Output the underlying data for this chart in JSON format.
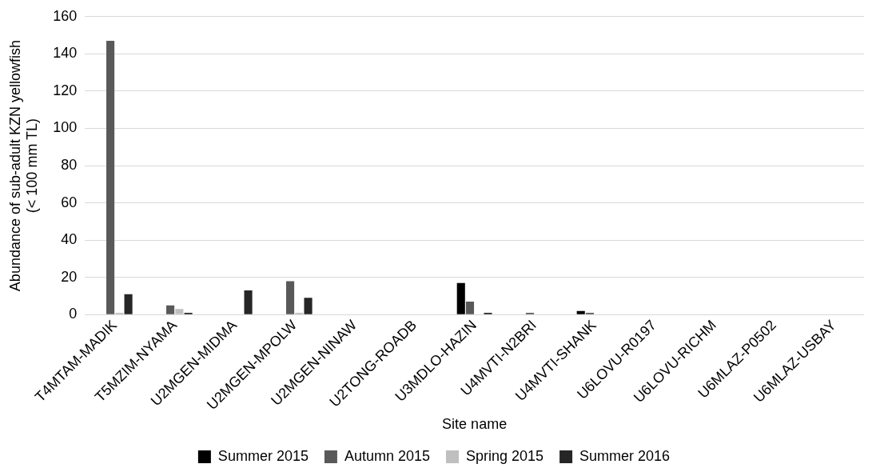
{
  "chart_data": {
    "type": "bar",
    "xlabel": "Site name",
    "ylabel": "Abundance of sub-adult KZN yellowfish (< 100 mm TL)",
    "categories": [
      "T4MTAM-MADIK",
      "T5MZIM-NYAMA",
      "U2MGEN-MIDMA",
      "U2MGEN-MPOLW",
      "U2MGEN-NINAW",
      "U2TONG-ROADB",
      "U3MDLO-HAZIN",
      "U4MVTI-N2BRI",
      "U4MVTI-SHANK",
      "U6LOVU-R0197",
      "U6LOVU-RICHM",
      "U6MLAZ-P0502",
      "U6MLAZ-USBAY"
    ],
    "series": [
      {
        "name": "Summer 2015",
        "color": "#000000",
        "values": [
          0,
          0,
          0,
          0,
          0,
          0,
          17,
          0,
          2,
          0,
          0,
          0,
          0
        ]
      },
      {
        "name": "Autumn 2015",
        "color": "#595959",
        "values": [
          147,
          5,
          0,
          18,
          0,
          0,
          7,
          1,
          1,
          0,
          0,
          0,
          0
        ]
      },
      {
        "name": "Spring 2015",
        "color": "#bfbfbf",
        "values": [
          1,
          3,
          0,
          1,
          0,
          0,
          0,
          0,
          0,
          0,
          0,
          0,
          0
        ]
      },
      {
        "name": "Summer 2016",
        "color": "#262626",
        "values": [
          11,
          1,
          13,
          9,
          0,
          0,
          1,
          0,
          0,
          0,
          0,
          0,
          0
        ]
      }
    ],
    "ylim": [
      0,
      160
    ],
    "yticks": [
      0,
      20,
      40,
      60,
      80,
      100,
      120,
      140,
      160
    ],
    "grid": "y",
    "legend": "bottom"
  }
}
